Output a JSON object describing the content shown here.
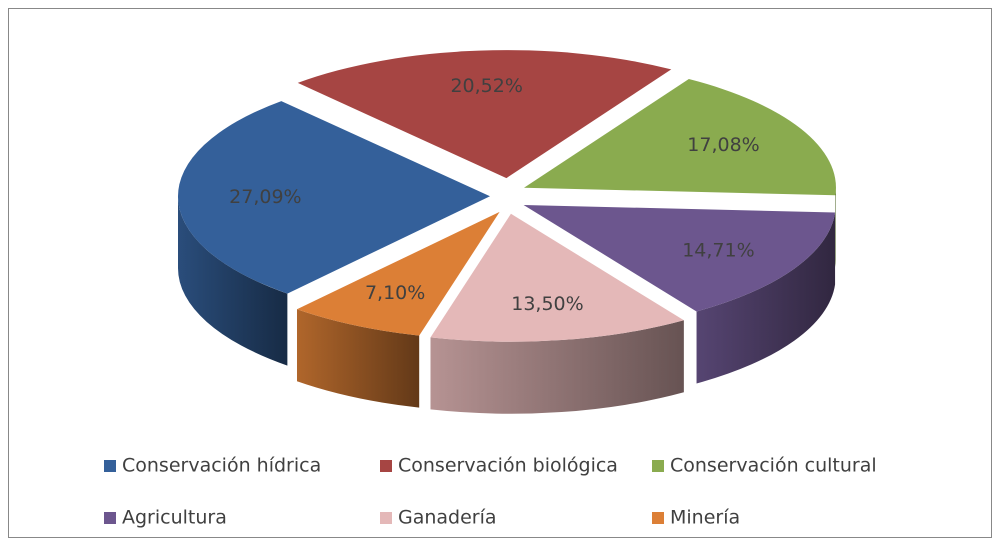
{
  "chart_data": {
    "type": "pie",
    "categories": [
      "Conservación hídrica",
      "Conservación biológica",
      "Conservación cultural",
      "Agricultura",
      "Ganadería",
      "Minería"
    ],
    "values": [
      27.09,
      20.52,
      17.08,
      14.71,
      13.5,
      7.1
    ],
    "value_labels": [
      "27,09%",
      "20,52%",
      "17,08%",
      "14,71%",
      "13,50%",
      "7,10%"
    ],
    "colors": [
      "#34609a",
      "#a64543",
      "#8aab4f",
      "#6c568e",
      "#e4b8b8",
      "#dc7f36"
    ],
    "legend": "bottom"
  }
}
